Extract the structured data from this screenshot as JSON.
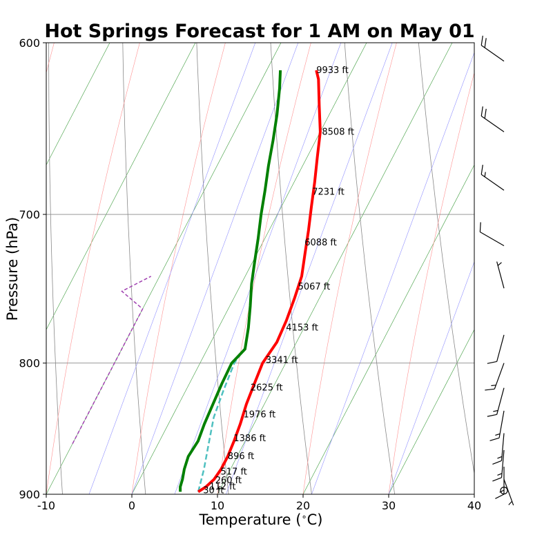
{
  "chart_data": {
    "type": "line",
    "title": "Hot Springs Forecast for 1 AM on May 01",
    "xlabel": "Temperature ($^\\circ$C)",
    "ylabel": "Pressure (hPa)",
    "xlim": [
      -10,
      40
    ],
    "ylim": [
      900,
      600
    ],
    "x_ticks": [
      "-10",
      "0",
      "10",
      "20",
      "30",
      "40"
    ],
    "y_ticks": [
      "600",
      "700",
      "800",
      "900"
    ],
    "y_tick_values": [
      600,
      700,
      800,
      900
    ],
    "x_tick_values": [
      -10,
      0,
      10,
      20,
      30,
      40
    ],
    "grid": "isobars at 700 and 800 hPa",
    "colors": {
      "temperature": "#ff0000",
      "dewpoint": "#008000",
      "parcel": "#4fc0c0",
      "dry_adiabat": "#888888",
      "moist_adiabat": "#ff9090",
      "mixing_ratio": "#9090ff",
      "isotherm": "#3a9a3a",
      "dashed_profile": "#a040b0"
    },
    "series": [
      {
        "key": "temperature",
        "pressure": [
          898,
          894,
          888,
          880,
          870,
          858,
          845,
          830,
          815,
          800,
          785,
          770,
          755,
          740,
          725,
          710,
          695,
          680,
          665,
          650,
          635,
          620,
          615
        ],
        "temperature": [
          7.6,
          8.2,
          8.7,
          8.9,
          8.9,
          8.7,
          8.4,
          7.9,
          7.6,
          7.3,
          7.7,
          7.5,
          7.1,
          6.6,
          5.6,
          4.6,
          3.5,
          2.4,
          1.2,
          0.0,
          -1.7,
          -3.4,
          -4.2
        ]
      },
      {
        "key": "dewpoint",
        "pressure": [
          898,
          894,
          888,
          880,
          870,
          858,
          845,
          830,
          815,
          800,
          790,
          775,
          760,
          745,
          730,
          715,
          700,
          685,
          670,
          655,
          640,
          625,
          615
        ],
        "temperature": [
          5.5,
          5.2,
          5.0,
          4.6,
          4.3,
          4.5,
          4.2,
          4.0,
          3.8,
          3.7,
          4.4,
          3.5,
          2.4,
          1.2,
          0.2,
          -0.8,
          -1.9,
          -2.9,
          -4.0,
          -5.0,
          -6.1,
          -7.4,
          -8.4
        ]
      },
      {
        "key": "parcel",
        "pressure": [
          898,
          880,
          860,
          840,
          820,
          800,
          790
        ],
        "temperature": [
          7.6,
          6.9,
          5.9,
          4.9,
          4.4,
          4.0,
          4.3
        ]
      }
    ],
    "dashed_profile": {
      "pressure": [
        860,
        830,
        800,
        775,
        762,
        750,
        740
      ],
      "temperature": [
        -10.0,
        -10.0,
        -10.0,
        -10.0,
        -10.0,
        -13.5,
        -11.0
      ]
    },
    "height_labels": [
      {
        "text": "9933 ft",
        "pressure": 615,
        "temperature": -4.2
      },
      {
        "text": "8508 ft",
        "pressure": 650,
        "temperature": 0.2
      },
      {
        "text": "7231 ft",
        "pressure": 686,
        "temperature": 2.7
      },
      {
        "text": "6088 ft",
        "pressure": 718,
        "temperature": 4.9
      },
      {
        "text": "5067 ft",
        "pressure": 747,
        "temperature": 6.8
      },
      {
        "text": "4153 ft",
        "pressure": 775,
        "temperature": 7.9
      },
      {
        "text": "3341 ft",
        "pressure": 798,
        "temperature": 7.5
      },
      {
        "text": "2625 ft",
        "pressure": 818,
        "temperature": 7.4
      },
      {
        "text": "1976 ft",
        "pressure": 838,
        "temperature": 8.2
      },
      {
        "text": "1386 ft",
        "pressure": 856,
        "temperature": 8.5
      },
      {
        "text": "896 ft",
        "pressure": 870,
        "temperature": 8.9
      },
      {
        "text": "517 ft",
        "pressure": 882,
        "temperature": 9.0
      },
      {
        "text": "260 ft",
        "pressure": 889,
        "temperature": 8.9
      },
      {
        "text": "112 ft",
        "pressure": 894,
        "temperature": 8.6
      },
      {
        "text": "30 ft",
        "pressure": 897,
        "temperature": 8.1
      }
    ],
    "wind_barbs": [
      {
        "pressure": 610,
        "speed_kt": 20,
        "direction_deg": 305
      },
      {
        "pressure": 650,
        "speed_kt": 20,
        "direction_deg": 305
      },
      {
        "pressure": 685,
        "speed_kt": 15,
        "direction_deg": 305
      },
      {
        "pressure": 720,
        "speed_kt": 10,
        "direction_deg": 300
      },
      {
        "pressure": 748,
        "speed_kt": 5,
        "direction_deg": 345
      },
      {
        "pressure": 780,
        "speed_kt": 10,
        "direction_deg": 195
      },
      {
        "pressure": 800,
        "speed_kt": 15,
        "direction_deg": 200
      },
      {
        "pressure": 818,
        "speed_kt": 15,
        "direction_deg": 195
      },
      {
        "pressure": 835,
        "speed_kt": 15,
        "direction_deg": 190
      },
      {
        "pressure": 852,
        "speed_kt": 15,
        "direction_deg": 185
      },
      {
        "pressure": 865,
        "speed_kt": 15,
        "direction_deg": 185
      },
      {
        "pressure": 878,
        "speed_kt": 15,
        "direction_deg": 180
      },
      {
        "pressure": 888,
        "speed_kt": 5,
        "direction_deg": 160
      },
      {
        "pressure": 897,
        "speed_kt": 0,
        "direction_deg": 0
      }
    ]
  }
}
